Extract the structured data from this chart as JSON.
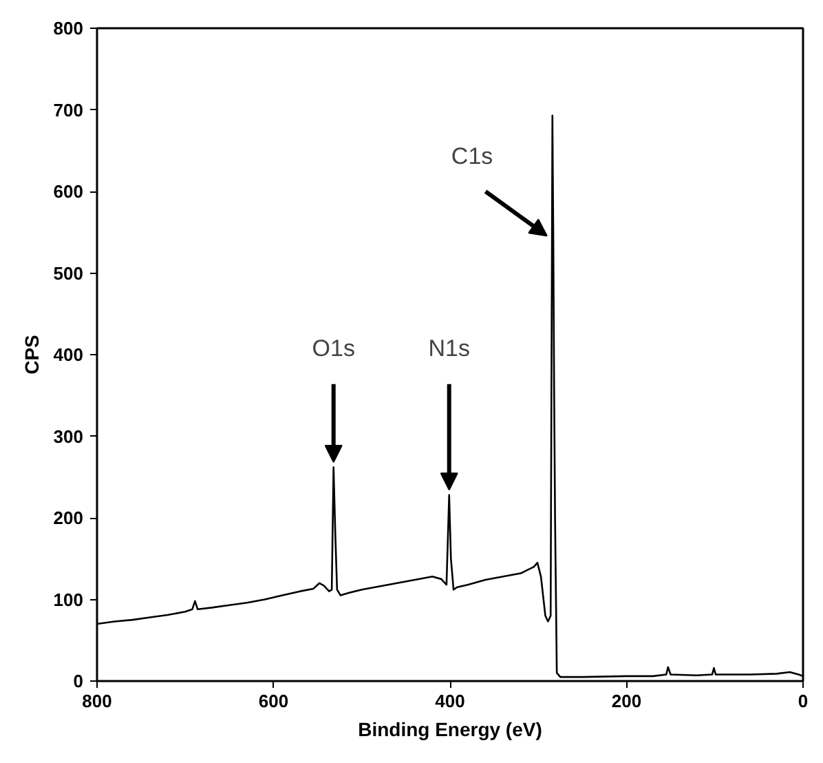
{
  "chart_data": {
    "type": "line",
    "xlabel": "Binding Energy (eV)",
    "ylabel": "CPS",
    "xlim": [
      800,
      0
    ],
    "xticks": [
      800,
      600,
      400,
      200,
      0
    ],
    "ylim": [
      0,
      800
    ],
    "yticks": [
      0,
      100,
      200,
      300,
      400,
      500,
      600,
      700,
      800
    ],
    "grid": false,
    "marker": "none",
    "line_style": "solid",
    "series": [
      {
        "color": "#000000",
        "x": [
          800,
          780,
          760,
          740,
          720,
          700,
          692,
          689,
          686,
          670,
          650,
          630,
          610,
          590,
          570,
          555,
          548,
          543,
          537,
          534,
          532,
          530,
          528,
          524,
          515,
          500,
          480,
          460,
          440,
          420,
          410,
          404,
          401,
          399,
          396,
          392,
          380,
          360,
          340,
          320,
          305,
          301,
          297,
          292,
          289,
          286,
          284,
          283,
          282,
          281,
          279,
          275,
          250,
          200,
          170,
          155,
          153,
          150,
          120,
          103,
          101,
          99,
          60,
          30,
          15,
          5,
          0
        ],
        "values": [
          70,
          73,
          75,
          78,
          81,
          85,
          88,
          98,
          88,
          90,
          93,
          96,
          100,
          105,
          110,
          113,
          120,
          117,
          110,
          112,
          262,
          180,
          112,
          105,
          108,
          112,
          116,
          120,
          124,
          128,
          125,
          118,
          228,
          150,
          112,
          115,
          118,
          124,
          128,
          132,
          140,
          145,
          128,
          80,
          73,
          80,
          693,
          544,
          350,
          200,
          10,
          5,
          5,
          6,
          6,
          8,
          17,
          8,
          7,
          8,
          16,
          8,
          8,
          9,
          11,
          8,
          6
        ]
      }
    ],
    "annotations": [
      {
        "text": "O1s",
        "x": 532,
        "y": 262
      },
      {
        "text": "N1s",
        "x": 401,
        "y": 228
      },
      {
        "text": "C1s",
        "x": 283,
        "y": 544
      }
    ]
  }
}
